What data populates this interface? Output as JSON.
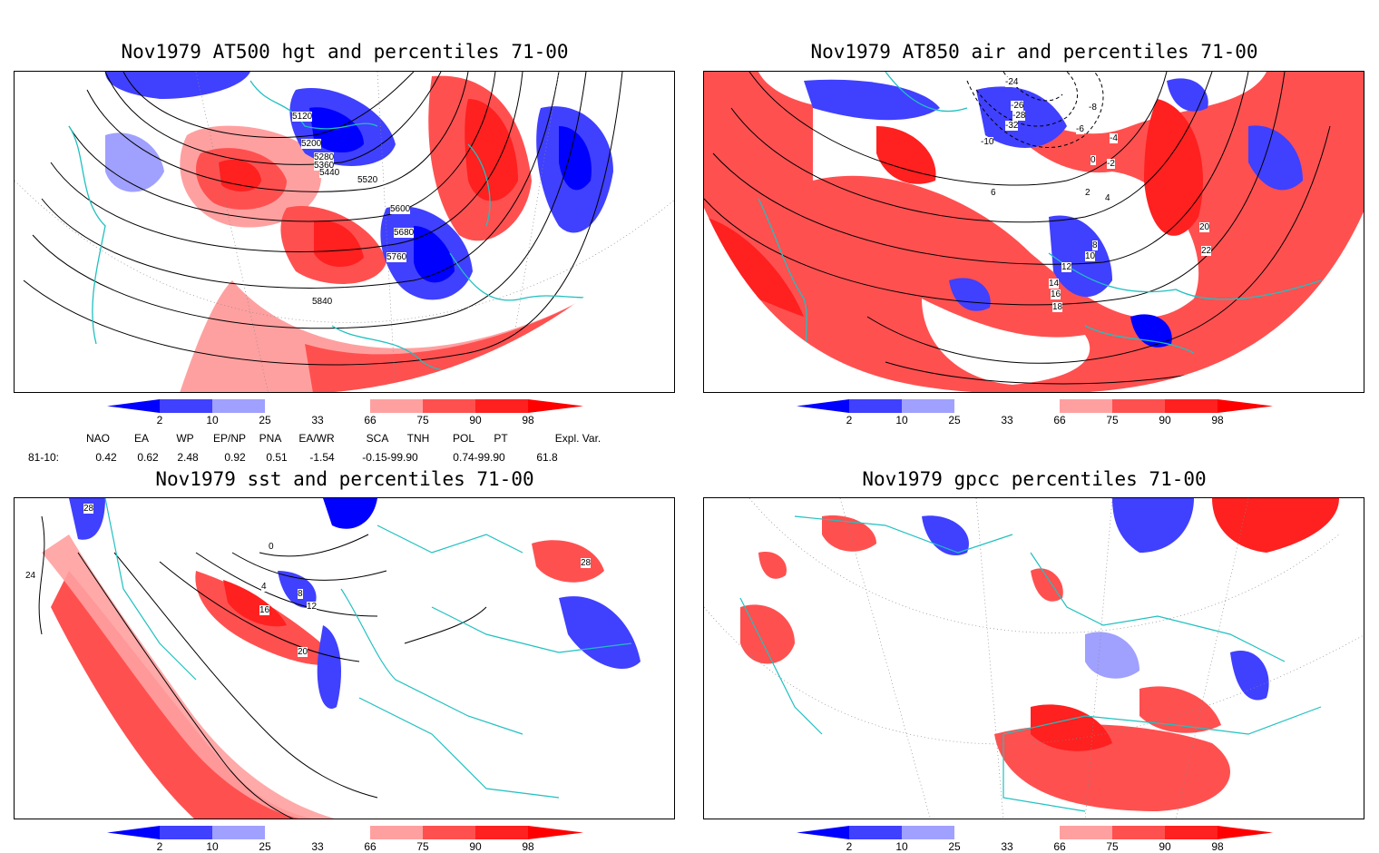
{
  "panels": [
    {
      "id": "hgt",
      "title": "Nov1979 AT500 hgt and percentiles 71-00",
      "contour_labels": [
        "5120",
        "5200",
        "5280",
        "5360",
        "5440",
        "5520",
        "5600",
        "5680",
        "5760",
        "5840"
      ]
    },
    {
      "id": "air",
      "title": "Nov1979 AT850 air and percentiles 71-00",
      "contour_labels": [
        "-24",
        "-26",
        "-28",
        "-32",
        "-10",
        "-8",
        "-6",
        "-4",
        "-2",
        "0",
        "2",
        "4",
        "6",
        "8",
        "10",
        "12",
        "14",
        "16",
        "18",
        "20",
        "22"
      ]
    },
    {
      "id": "sst",
      "title": "Nov1979 sst and percentiles 71-00",
      "contour_labels": [
        "28",
        "24",
        "0",
        "4",
        "8",
        "12",
        "16",
        "20",
        "28"
      ]
    },
    {
      "id": "gpcc",
      "title": "Nov1979 gpcc percentiles 71-00",
      "contour_labels": []
    }
  ],
  "colorbar": {
    "labels": [
      "2",
      "10",
      "25",
      "33",
      "66",
      "75",
      "90",
      "98"
    ],
    "colors": {
      "blue_dark": "#0000ff",
      "blue_mid": "#4040ff",
      "blue_light": "#a0a0ff",
      "red_light": "#ffa0a0",
      "red_mid": "#ff5050",
      "red_dark": "#ff2020",
      "red_tip": "#ff0000"
    }
  },
  "indices": {
    "headers": [
      "NAO",
      "EA",
      "WP",
      "EP/NP",
      "PNA",
      "EA/WR",
      "SCA",
      "TNH",
      "POL",
      "PT",
      "Expl. Var."
    ],
    "row_label": "81-10:",
    "values_text": [
      "0.42",
      "0.62",
      "2.48",
      "0.92",
      "0.51",
      "-1.54",
      "-0.15-99.90",
      "0.74-99.90",
      "61.8"
    ]
  },
  "colors": {
    "coast": "#20c0c0",
    "grid": "#888888",
    "contour": "#000000"
  }
}
